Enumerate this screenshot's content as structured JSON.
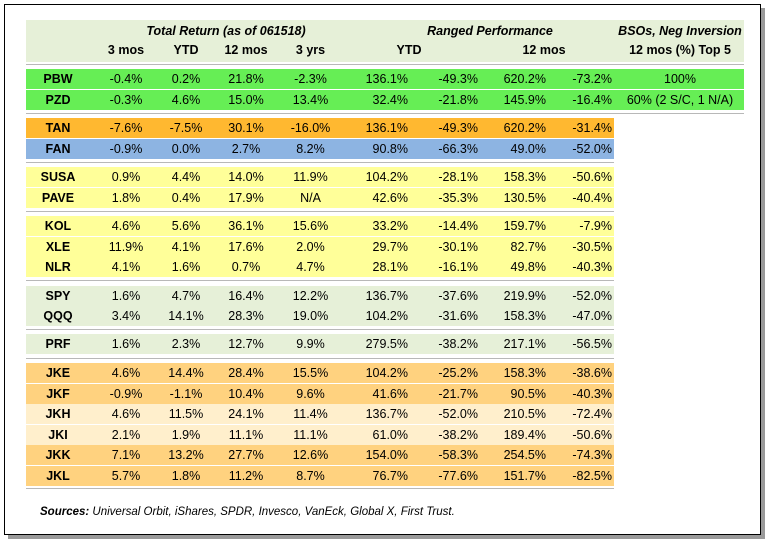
{
  "header": {
    "total_return": "Total Return (as of 061518)",
    "ranged_performance": "Ranged Performance",
    "bsos_title": "BSOs, Neg Inversion",
    "col_3mos": "3 mos",
    "col_ytd": "YTD",
    "col_12mos": "12 mos",
    "col_3yrs": "3 yrs",
    "col_range_ytd": "YTD",
    "col_range_12mos": "12 mos",
    "col_bsos": "12 mos (%) Top 5"
  },
  "colors": {
    "header_bg": "#e6f0d8",
    "green": "#66ee55",
    "orange": "#ffb830",
    "blue": "#8db4e2",
    "yellow": "#ffff99",
    "light_green": "#e6f0d8",
    "tan": "#ffd27f",
    "light_tan": "#ffefcc",
    "row_sep": "#ffffff"
  },
  "rows": [
    {
      "ticker": "PBW",
      "m3": "-0.4%",
      "ytd": "0.2%",
      "m12": "21.8%",
      "y3": "-2.3%",
      "r_ytd_hi": "136.1%",
      "r_ytd_lo": "-49.3%",
      "r_12_hi": "620.2%",
      "r_12_lo": "-73.2%",
      "bso": "100%"
    },
    {
      "ticker": "PZD",
      "m3": "-0.3%",
      "ytd": "4.6%",
      "m12": "15.0%",
      "y3": "13.4%",
      "r_ytd_hi": "32.4%",
      "r_ytd_lo": "-21.8%",
      "r_12_hi": "145.9%",
      "r_12_lo": "-16.4%",
      "bso": "60% (2 S/C, 1 N/A)"
    },
    {
      "ticker": "TAN",
      "m3": "-7.6%",
      "ytd": "-7.5%",
      "m12": "30.1%",
      "y3": "-16.0%",
      "r_ytd_hi": "136.1%",
      "r_ytd_lo": "-49.3%",
      "r_12_hi": "620.2%",
      "r_12_lo": "-31.4%",
      "bso": ""
    },
    {
      "ticker": "FAN",
      "m3": "-0.9%",
      "ytd": "0.0%",
      "m12": "2.7%",
      "y3": "8.2%",
      "r_ytd_hi": "90.8%",
      "r_ytd_lo": "-66.3%",
      "r_12_hi": "49.0%",
      "r_12_lo": "-52.0%",
      "bso": ""
    },
    {
      "ticker": "SUSA",
      "m3": "0.9%",
      "ytd": "4.4%",
      "m12": "14.0%",
      "y3": "11.9%",
      "r_ytd_hi": "104.2%",
      "r_ytd_lo": "-28.1%",
      "r_12_hi": "158.3%",
      "r_12_lo": "-50.6%",
      "bso": ""
    },
    {
      "ticker": "PAVE",
      "m3": "1.8%",
      "ytd": "0.4%",
      "m12": "17.9%",
      "y3": "N/A",
      "r_ytd_hi": "42.6%",
      "r_ytd_lo": "-35.3%",
      "r_12_hi": "130.5%",
      "r_12_lo": "-40.4%",
      "bso": ""
    },
    {
      "ticker": "KOL",
      "m3": "4.6%",
      "ytd": "5.6%",
      "m12": "36.1%",
      "y3": "15.6%",
      "r_ytd_hi": "33.2%",
      "r_ytd_lo": "-14.4%",
      "r_12_hi": "159.7%",
      "r_12_lo": "-7.9%",
      "bso": ""
    },
    {
      "ticker": "XLE",
      "m3": "11.9%",
      "ytd": "4.1%",
      "m12": "17.6%",
      "y3": "2.0%",
      "r_ytd_hi": "29.7%",
      "r_ytd_lo": "-30.1%",
      "r_12_hi": "82.7%",
      "r_12_lo": "-30.5%",
      "bso": ""
    },
    {
      "ticker": "NLR",
      "m3": "4.1%",
      "ytd": "1.6%",
      "m12": "0.7%",
      "y3": "4.7%",
      "r_ytd_hi": "28.1%",
      "r_ytd_lo": "-16.1%",
      "r_12_hi": "49.8%",
      "r_12_lo": "-40.3%",
      "bso": ""
    },
    {
      "ticker": "SPY",
      "m3": "1.6%",
      "ytd": "4.7%",
      "m12": "16.4%",
      "y3": "12.2%",
      "r_ytd_hi": "136.7%",
      "r_ytd_lo": "-37.6%",
      "r_12_hi": "219.9%",
      "r_12_lo": "-52.0%",
      "bso": ""
    },
    {
      "ticker": "QQQ",
      "m3": "3.4%",
      "ytd": "14.1%",
      "m12": "28.3%",
      "y3": "19.0%",
      "r_ytd_hi": "104.2%",
      "r_ytd_lo": "-31.6%",
      "r_12_hi": "158.3%",
      "r_12_lo": "-47.0%",
      "bso": ""
    },
    {
      "ticker": "PRF",
      "m3": "1.6%",
      "ytd": "2.3%",
      "m12": "12.7%",
      "y3": "9.9%",
      "r_ytd_hi": "279.5%",
      "r_ytd_lo": "-38.2%",
      "r_12_hi": "217.1%",
      "r_12_lo": "-56.5%",
      "bso": ""
    },
    {
      "ticker": "JKE",
      "m3": "4.6%",
      "ytd": "14.4%",
      "m12": "28.4%",
      "y3": "15.5%",
      "r_ytd_hi": "104.2%",
      "r_ytd_lo": "-25.2%",
      "r_12_hi": "158.3%",
      "r_12_lo": "-38.6%",
      "bso": ""
    },
    {
      "ticker": "JKF",
      "m3": "-0.9%",
      "ytd": "-1.1%",
      "m12": "10.4%",
      "y3": "9.6%",
      "r_ytd_hi": "41.6%",
      "r_ytd_lo": "-21.7%",
      "r_12_hi": "90.5%",
      "r_12_lo": "-40.3%",
      "bso": ""
    },
    {
      "ticker": "JKH",
      "m3": "4.6%",
      "ytd": "11.5%",
      "m12": "24.1%",
      "y3": "11.4%",
      "r_ytd_hi": "136.7%",
      "r_ytd_lo": "-52.0%",
      "r_12_hi": "210.5%",
      "r_12_lo": "-72.4%",
      "bso": ""
    },
    {
      "ticker": "JKI",
      "m3": "2.1%",
      "ytd": "1.9%",
      "m12": "11.1%",
      "y3": "11.1%",
      "r_ytd_hi": "61.0%",
      "r_ytd_lo": "-38.2%",
      "r_12_hi": "189.4%",
      "r_12_lo": "-50.6%",
      "bso": ""
    },
    {
      "ticker": "JKK",
      "m3": "7.1%",
      "ytd": "13.2%",
      "m12": "27.7%",
      "y3": "12.6%",
      "r_ytd_hi": "154.0%",
      "r_ytd_lo": "-58.3%",
      "r_12_hi": "254.5%",
      "r_12_lo": "-74.3%",
      "bso": ""
    },
    {
      "ticker": "JKL",
      "m3": "5.7%",
      "ytd": "1.8%",
      "m12": "11.2%",
      "y3": "8.7%",
      "r_ytd_hi": "76.7%",
      "r_ytd_lo": "-77.6%",
      "r_12_hi": "151.7%",
      "r_12_lo": "-82.5%",
      "bso": ""
    }
  ],
  "sources": {
    "label": "Sources:",
    "text": " Universal Orbit, iShares, SPDR, Invesco, VanEck, Global X, First Trust."
  }
}
